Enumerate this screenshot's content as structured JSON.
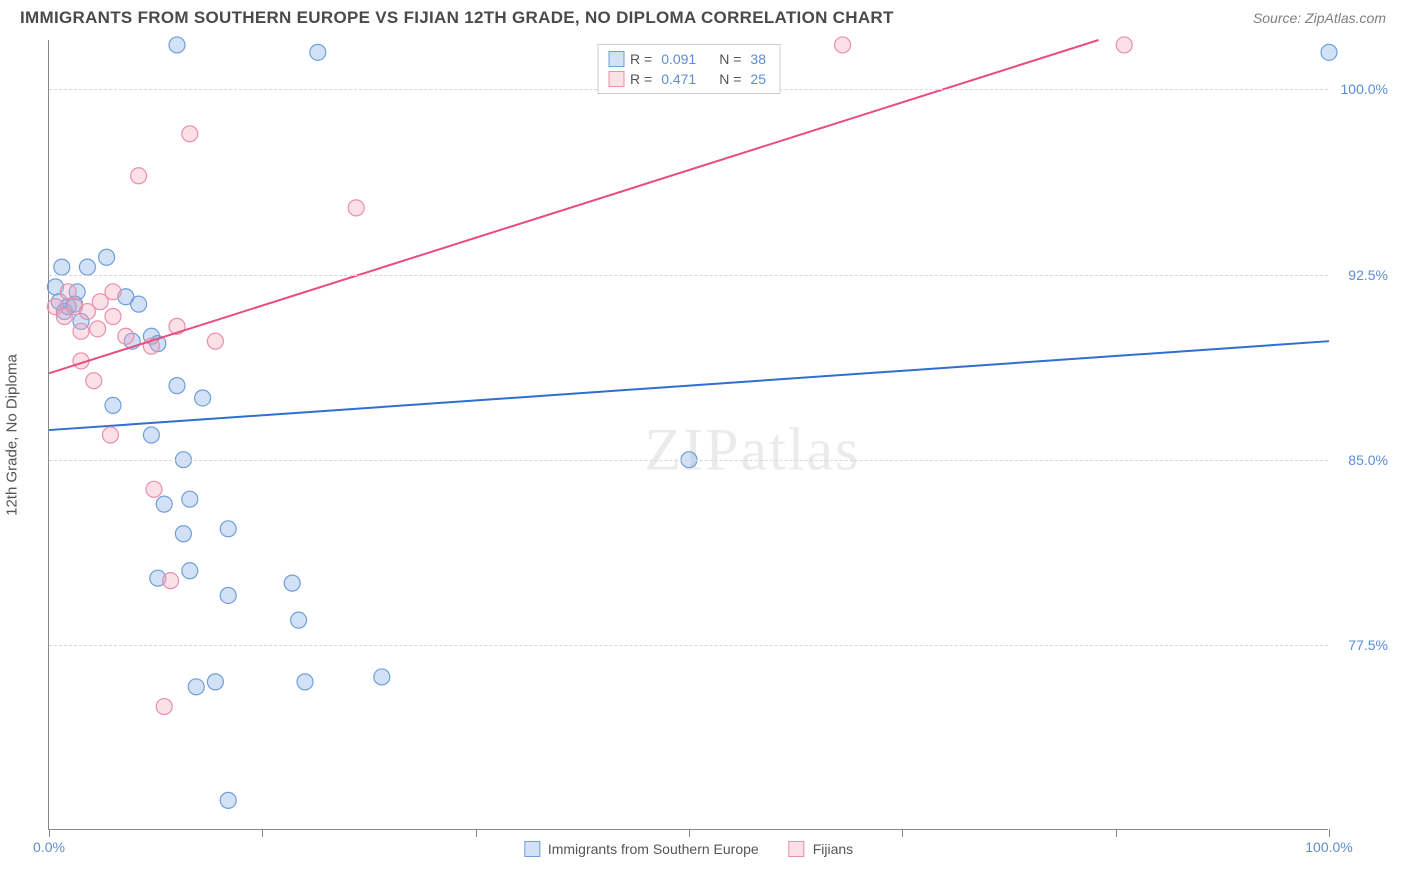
{
  "header": {
    "title": "IMMIGRANTS FROM SOUTHERN EUROPE VS FIJIAN 12TH GRADE, NO DIPLOMA CORRELATION CHART",
    "source": "Source: ZipAtlas.com"
  },
  "chart": {
    "type": "scatter",
    "y_axis_label": "12th Grade, No Diploma",
    "xlim": [
      0,
      100
    ],
    "ylim": [
      70,
      102
    ],
    "x_ticks": [
      0,
      16.67,
      33.33,
      50,
      66.67,
      83.33,
      100
    ],
    "x_tick_labels": {
      "0": "0.0%",
      "100": "100.0%"
    },
    "y_gridlines": [
      77.5,
      85.0,
      92.5,
      100.0
    ],
    "y_tick_labels": [
      "77.5%",
      "85.0%",
      "92.5%",
      "100.0%"
    ],
    "background_color": "#ffffff",
    "grid_color": "#d8d8d8",
    "axis_color": "#888888",
    "tick_label_color": "#5b8dd6",
    "marker_radius": 8,
    "marker_stroke_width": 1.2,
    "line_width": 2,
    "series": [
      {
        "name": "Immigrants from Southern Europe",
        "color_fill": "rgba(125,168,227,0.35)",
        "color_stroke": "#6f9fd8",
        "line_color": "#2e6fd0",
        "R": "0.091",
        "N": "38",
        "trend": {
          "x1": 0,
          "y1": 86.2,
          "x2": 100,
          "y2": 89.8
        },
        "points": [
          [
            0.5,
            92.0
          ],
          [
            0.8,
            91.4
          ],
          [
            1.2,
            91.0
          ],
          [
            1.0,
            92.8
          ],
          [
            1.5,
            91.2
          ],
          [
            2.0,
            91.3
          ],
          [
            2.2,
            91.8
          ],
          [
            3,
            92.8
          ],
          [
            4.5,
            93.2
          ],
          [
            7,
            91.3
          ],
          [
            8,
            90.0
          ],
          [
            8.5,
            89.7
          ],
          [
            10,
            88.0
          ],
          [
            6.5,
            89.8
          ],
          [
            5,
            87.2
          ],
          [
            8,
            86.0
          ],
          [
            12,
            87.5
          ],
          [
            10.5,
            85.0
          ],
          [
            9,
            83.2
          ],
          [
            11,
            83.4
          ],
          [
            10.5,
            82.0
          ],
          [
            14,
            82.2
          ],
          [
            8.5,
            80.2
          ],
          [
            11,
            80.5
          ],
          [
            14,
            79.5
          ],
          [
            19,
            80.0
          ],
          [
            19.5,
            78.5
          ],
          [
            13,
            76.0
          ],
          [
            11.5,
            75.8
          ],
          [
            20,
            76.0
          ],
          [
            26,
            76.2
          ],
          [
            14,
            71.2
          ],
          [
            21,
            101.5
          ],
          [
            10,
            101.8
          ],
          [
            6,
            91.6
          ],
          [
            2.5,
            90.6
          ],
          [
            50,
            85.0
          ],
          [
            100,
            101.5
          ]
        ]
      },
      {
        "name": "Fijians",
        "color_fill": "rgba(244,166,188,0.35)",
        "color_stroke": "#e98fab",
        "line_color": "#e94d7f",
        "R": "0.471",
        "N": "25",
        "trend": {
          "x1": 0,
          "y1": 88.5,
          "x2": 82,
          "y2": 102
        },
        "points": [
          [
            0.5,
            91.2
          ],
          [
            1.2,
            90.8
          ],
          [
            2,
            91.2
          ],
          [
            3,
            91.0
          ],
          [
            2.5,
            90.2
          ],
          [
            4,
            91.4
          ],
          [
            5,
            90.8
          ],
          [
            5,
            91.8
          ],
          [
            6,
            90.0
          ],
          [
            3.5,
            88.2
          ],
          [
            8,
            89.6
          ],
          [
            10,
            90.4
          ],
          [
            13,
            89.8
          ],
          [
            7,
            96.5
          ],
          [
            11,
            98.2
          ],
          [
            4.8,
            86.0
          ],
          [
            8.2,
            83.8
          ],
          [
            9.5,
            80.1
          ],
          [
            9,
            75.0
          ],
          [
            24,
            95.2
          ],
          [
            62,
            101.8
          ],
          [
            84,
            101.8
          ],
          [
            2.5,
            89.0
          ],
          [
            3.8,
            90.3
          ],
          [
            1.5,
            91.8
          ]
        ]
      }
    ],
    "legend_top": {
      "R_label": "R =",
      "N_label": "N ="
    },
    "legend_bottom": [
      "Immigrants from Southern Europe",
      "Fijians"
    ],
    "watermark": "ZIPatlas"
  }
}
